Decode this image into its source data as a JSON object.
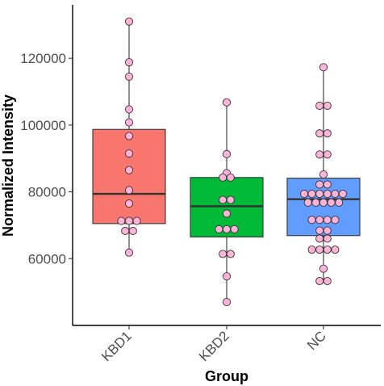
{
  "chart_data": {
    "type": "box",
    "xlabel": "Group",
    "ylabel": "Normalized Intensity",
    "ylim": [
      40000,
      136000
    ],
    "yticks": [
      60000,
      80000,
      100000,
      120000
    ],
    "ytick_labels": [
      "60000",
      "80000",
      "100000",
      "120000"
    ],
    "categories": [
      "KBD1",
      "KBD2",
      "NC"
    ],
    "grid": false,
    "legend": "none",
    "point_color": "#ffb3d9",
    "groups": [
      {
        "name": "KBD1",
        "color": "#f8766d",
        "whisker_low": 61800,
        "q1": 70500,
        "median": 79400,
        "q3": 98700,
        "whisker_high": 131000,
        "points": [
          131000,
          118800,
          114500,
          104700,
          100800,
          96700,
          91500,
          86500,
          80500,
          76500,
          71300,
          71300,
          71300,
          68300,
          68300,
          61800
        ]
      },
      {
        "name": "KBD2",
        "color": "#00ba38",
        "whisker_low": 47000,
        "q1": 66500,
        "median": 75700,
        "q3": 84300,
        "whisker_high": 106800,
        "points": [
          106800,
          91300,
          85600,
          84300,
          84300,
          77600,
          77600,
          73500,
          68800,
          68800,
          68800,
          61400,
          61400,
          54700,
          47000
        ]
      },
      {
        "name": "NC",
        "color": "#619cff",
        "whisker_low": 53000,
        "q1": 66900,
        "median": 77800,
        "q3": 84100,
        "whisker_high": 117300,
        "points": [
          117300,
          105800,
          105800,
          97500,
          97500,
          91200,
          91200,
          85200,
          82200,
          82200,
          79400,
          79400,
          79400,
          79400,
          79400,
          79400,
          76800,
          76800,
          76800,
          76800,
          76800,
          71600,
          71600,
          71600,
          71600,
          68400,
          68400,
          66000,
          66000,
          62700,
          62700,
          62700,
          62700,
          57000,
          53300,
          53300
        ]
      }
    ]
  }
}
